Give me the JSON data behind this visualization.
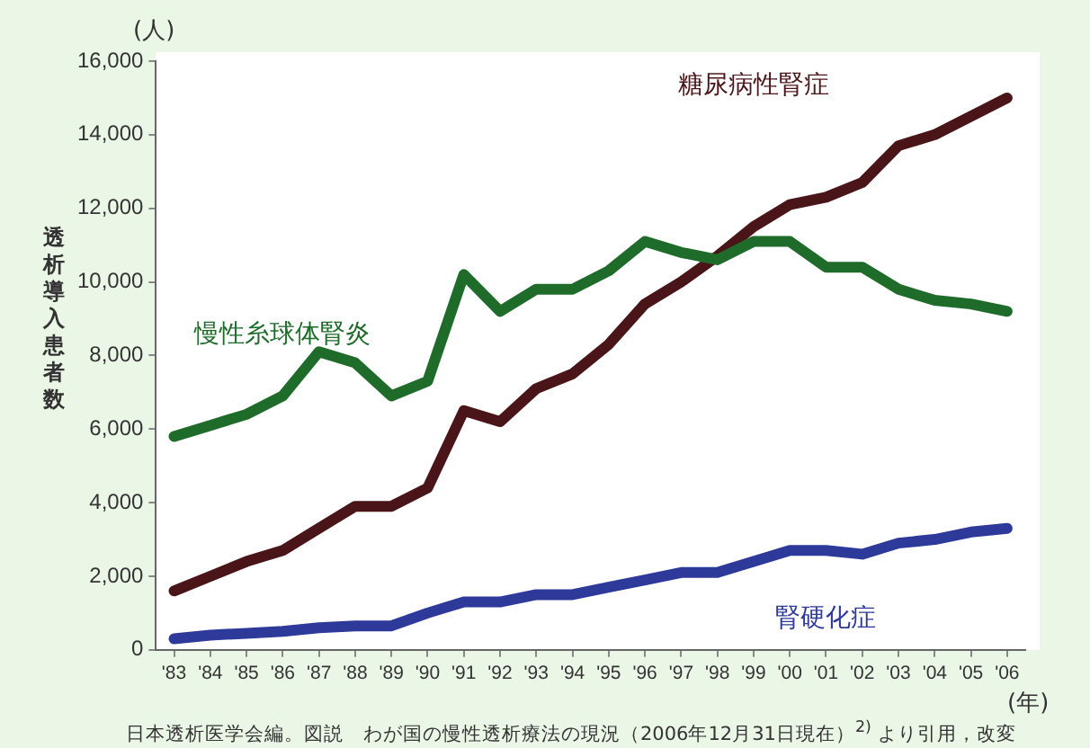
{
  "chart_data": {
    "type": "line",
    "ylabel": "透析導入患者数",
    "xlabel": "(年)",
    "categories": [
      "'83",
      "'84",
      "'85",
      "'86",
      "'87",
      "'88",
      "'89",
      "'90",
      "'91",
      "'92",
      "'93",
      "'94",
      "'95",
      "'96",
      "'97",
      "'98",
      "'99",
      "'00",
      "'01",
      "'02",
      "'03",
      "'04",
      "'05",
      "'06"
    ],
    "ylim": [
      0,
      16000
    ],
    "yticks": [
      0,
      {
        "value": 2000,
        "label": "2,000"
      },
      {
        "value": 4000,
        "label": "4,000"
      },
      {
        "value": 6000,
        "label": "6,000"
      },
      {
        "value": 8000,
        "label": "8,000"
      },
      {
        "value": 10000,
        "label": "10,000"
      },
      {
        "value": 12000,
        "label": "12,000"
      },
      {
        "value": 14000,
        "label": "14,000"
      },
      {
        "value": 16000,
        "label": "16,000"
      }
    ],
    "grid": false,
    "legend": false,
    "marker": "none",
    "line_style": "solid",
    "series": [
      {
        "name": "慢性糸球体腎炎",
        "color": "#1f6b2a",
        "values": [
          5800,
          6100,
          6400,
          6900,
          8100,
          7800,
          6900,
          7300,
          10200,
          9200,
          9800,
          9800,
          10300,
          11100,
          10800,
          10600,
          11100,
          11100,
          10400,
          10400,
          9800,
          9500,
          9400,
          9200
        ]
      },
      {
        "name": "糖尿病性腎症",
        "color": "#4a1518",
        "values": [
          1600,
          2000,
          2400,
          2700,
          3300,
          3900,
          3900,
          4400,
          6500,
          6200,
          7100,
          7500,
          8300,
          9400,
          10000,
          10700,
          11500,
          12100,
          12300,
          12700,
          13700,
          14000,
          14500,
          15000
        ]
      },
      {
        "name": "腎硬化症",
        "color": "#2e3a9a",
        "values": [
          300,
          400,
          450,
          500,
          600,
          650,
          650,
          1000,
          1300,
          1300,
          1500,
          1500,
          1700,
          1900,
          2100,
          2100,
          2400,
          2700,
          2700,
          2600,
          2900,
          3000,
          3200,
          3300
        ]
      }
    ],
    "annotations": [
      "(人)",
      "日本透析医学会編。図説　わが国の慢性透析療法の現況（2006年12月31日現在）$^{2)}$ より引用，改変"
    ]
  }
}
